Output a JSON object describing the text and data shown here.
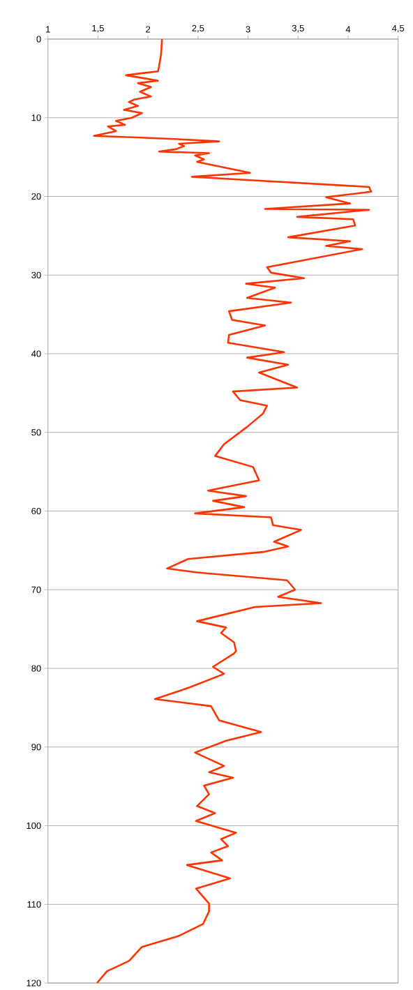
{
  "chart_data": {
    "type": "line",
    "color": "#ff3300",
    "x": [
      2.14,
      2.13,
      2.11,
      2.1,
      1.9,
      1.78,
      1.97,
      2.1,
      1.9,
      2.03,
      1.92,
      2.03,
      1.86,
      1.81,
      1.9,
      1.76,
      1.94,
      1.84,
      1.68,
      1.77,
      1.6,
      1.68,
      1.46,
      1.89,
      2.26,
      2.71,
      2.31,
      2.36,
      2.28,
      2.11,
      2.61,
      2.47,
      2.56,
      2.49,
      3.02,
      2.44,
      2.84,
      4.21,
      4.23,
      3.78,
      4.02,
      3.17,
      4.21,
      3.49,
      4.05,
      4.07,
      3.4,
      4.02,
      3.78,
      4.14,
      3.19,
      3.23,
      3.56,
      2.98,
      3.27,
      2.99,
      3.43,
      2.81,
      2.84,
      3.17,
      2.81,
      2.8,
      3.36,
      2.99,
      3.4,
      3.11,
      3.49,
      2.85,
      2.92,
      3.19,
      3.15,
      2.99,
      2.76,
      2.67,
      3.05,
      3.11,
      2.6,
      2.98,
      2.65,
      2.96,
      2.47,
      3.23,
      3.25,
      3.53,
      3.26,
      3.4,
      3.15,
      2.4,
      2.19,
      2.49,
      3.39,
      3.47,
      3.3,
      3.73,
      3.07,
      2.49,
      2.78,
      2.73,
      2.86,
      2.88,
      2.86,
      2.65,
      2.76,
      2.42,
      2.07,
      2.63,
      2.71,
      3.13,
      2.78,
      2.47,
      2.76,
      2.61,
      2.85,
      2.56,
      2.61,
      2.49,
      2.67,
      2.48,
      2.88,
      2.73,
      2.8,
      2.63,
      2.74,
      2.39,
      2.82,
      2.48,
      2.61,
      2.61,
      2.55,
      2.31,
      1.94,
      1.81,
      1.59,
      1.49
    ],
    "values": [
      0,
      2,
      3.5,
      4.1,
      4.4,
      4.6,
      5,
      5.3,
      5.6,
      6.1,
      6.7,
      7.3,
      7.7,
      8,
      8.5,
      9,
      9.4,
      10,
      10.4,
      10.9,
      11.1,
      11.7,
      12.3,
      12.5,
      12.7,
      13,
      13.3,
      13.6,
      14,
      14.3,
      14.5,
      14.8,
      15.3,
      15.6,
      17,
      17.5,
      17.8,
      18.8,
      19.4,
      20.1,
      20.9,
      21.6,
      21.7,
      22.6,
      22.9,
      23.7,
      25.2,
      25.7,
      26.3,
      26.7,
      29,
      29.7,
      30.4,
      31.1,
      31.6,
      32.9,
      33.5,
      34.6,
      35.7,
      36.4,
      37.6,
      38.6,
      39.8,
      40.5,
      41.4,
      42.4,
      44.3,
      44.8,
      45.9,
      46.6,
      47.6,
      49.3,
      51.5,
      53,
      54.4,
      56.1,
      57.4,
      58.1,
      58.7,
      59.5,
      60.3,
      60.8,
      61.8,
      62.4,
      63.9,
      64.5,
      65.2,
      66.1,
      67.3,
      67.8,
      68.8,
      70,
      70.9,
      71.7,
      72.2,
      74,
      74.8,
      75.5,
      76.7,
      77.8,
      78.1,
      79.8,
      80.7,
      82.4,
      83.9,
      84.8,
      86.6,
      88.1,
      89.2,
      90.7,
      92.4,
      93.2,
      93.9,
      94.9,
      96,
      97.5,
      98.4,
      99.4,
      100.9,
      101.7,
      102.6,
      103.4,
      104.4,
      105,
      106.7,
      108,
      109.9,
      110.9,
      112.5,
      114,
      115.4,
      117.2,
      118.5,
      120
    ],
    "xlim": [
      1,
      4.5
    ],
    "xticks": [
      1,
      {
        "value": 1.5,
        "label": "1,5"
      },
      2,
      {
        "value": 2.5,
        "label": "2,5"
      },
      3,
      {
        "value": 3.5,
        "label": "3,5"
      },
      4,
      {
        "value": 4.5,
        "label": "4,5"
      }
    ],
    "ylim": [
      120,
      0
    ],
    "yticks": [
      0,
      10,
      20,
      30,
      40,
      50,
      60,
      70,
      80,
      90,
      100,
      110,
      120
    ],
    "grid": "y"
  }
}
